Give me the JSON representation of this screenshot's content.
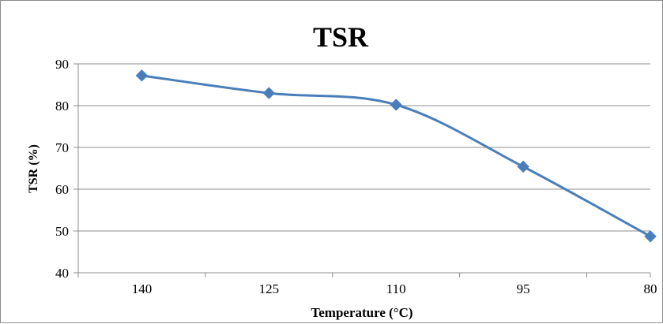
{
  "chart_data": {
    "type": "line",
    "title": "TSR",
    "xlabel": "Temperature (°C)",
    "ylabel": "TSR (%)",
    "categories": [
      "140",
      "125",
      "110",
      "95",
      "80"
    ],
    "series": [
      {
        "values": [
          87.2,
          83.0,
          80.2,
          65.4,
          48.7
        ],
        "color": "#4a7ebb"
      }
    ],
    "ylim": [
      40,
      90
    ],
    "yticks": [
      40,
      50,
      60,
      70,
      80,
      90
    ],
    "grid": true,
    "legend": "none",
    "smooth": true,
    "marker": "diamond"
  }
}
